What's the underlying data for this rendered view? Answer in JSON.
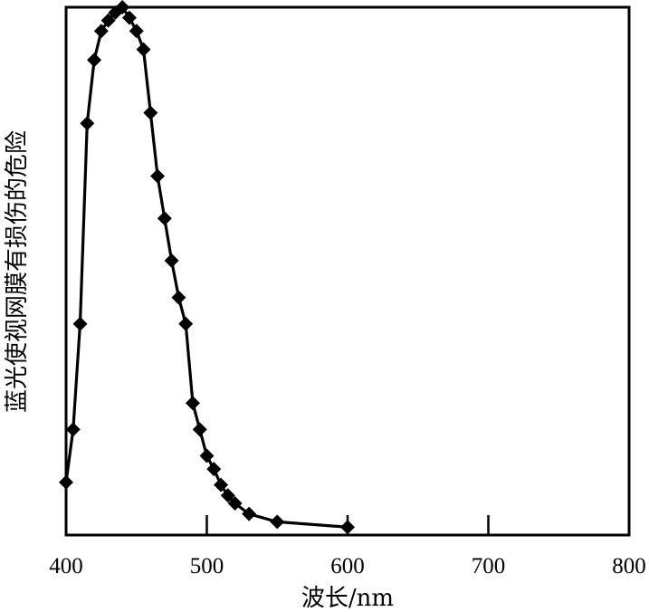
{
  "chart_data": {
    "type": "line",
    "title": "",
    "xlabel": "波长/nm",
    "ylabel": "蓝光使视网膜有损伤的危险",
    "xlim": [
      400,
      800
    ],
    "ylim": [
      0,
      1
    ],
    "x_ticks": [
      400,
      500,
      600,
      700,
      800
    ],
    "y_ticks_labeled": false,
    "grid": false,
    "legend": "none",
    "marker": "diamond",
    "line_color": "#000000",
    "series": [
      {
        "x": [
          400,
          405,
          410,
          415,
          420,
          425,
          430,
          435,
          440,
          445,
          450,
          455,
          460,
          465,
          470,
          475,
          480,
          485,
          490,
          495,
          500,
          505,
          510,
          515,
          520,
          530,
          550,
          600
        ],
        "y": [
          0.1,
          0.2,
          0.4,
          0.78,
          0.9,
          0.955,
          0.975,
          0.99,
          1.0,
          0.98,
          0.955,
          0.92,
          0.8,
          0.68,
          0.6,
          0.52,
          0.45,
          0.4,
          0.25,
          0.2,
          0.15,
          0.125,
          0.095,
          0.075,
          0.06,
          0.04,
          0.025,
          0.015
        ]
      }
    ]
  }
}
